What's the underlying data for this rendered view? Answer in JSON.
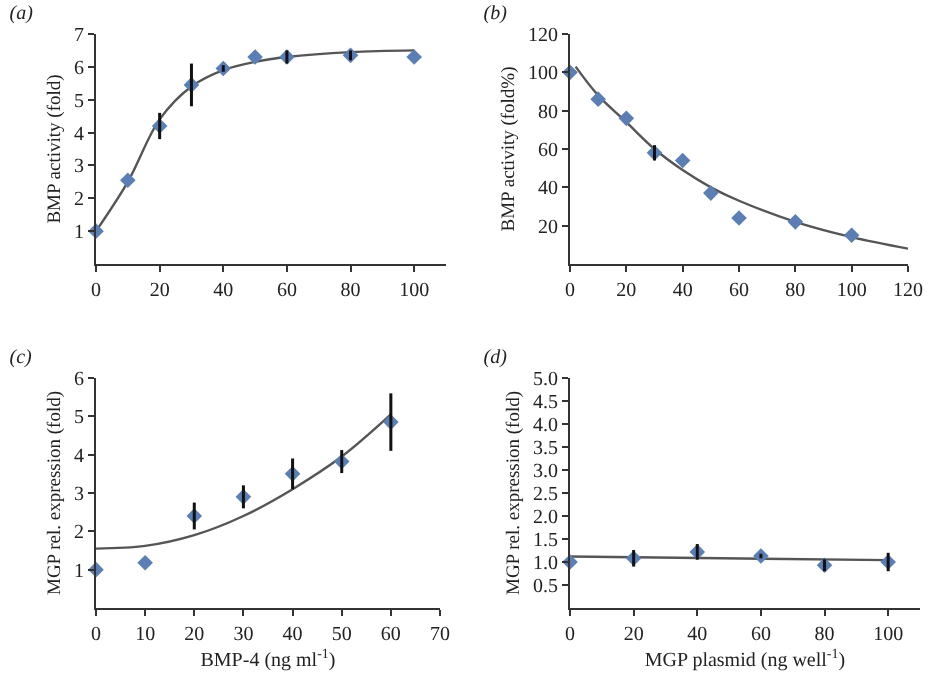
{
  "chart_data": [
    {
      "type": "scatter",
      "title": "(a)",
      "ylabel": "BMP activity (fold)",
      "xlim": [
        0,
        110
      ],
      "xticks": [
        0,
        20,
        40,
        60,
        80,
        100
      ],
      "ylim": [
        0,
        7
      ],
      "yticks": [
        1,
        2,
        3,
        4,
        5,
        6,
        7
      ],
      "series": [
        {
          "type": "scatter",
          "marker": "diamond",
          "color": "#5b7fb5",
          "x": [
            0,
            10,
            20,
            30,
            40,
            50,
            60,
            80,
            100
          ],
          "values": [
            1,
            2.55,
            4.2,
            5.45,
            5.95,
            6.3,
            6.3,
            6.35,
            6.3
          ],
          "errors": [
            null,
            null,
            0.4,
            0.65,
            0.1,
            null,
            0.2,
            0.15,
            null
          ]
        },
        {
          "type": "line",
          "marker": "none",
          "color": "#555555",
          "x": [
            0,
            10,
            20,
            30,
            40,
            50,
            60,
            80,
            100
          ],
          "values": [
            1,
            2.5,
            4.4,
            5.4,
            5.9,
            6.15,
            6.3,
            6.45,
            6.5
          ]
        }
      ]
    },
    {
      "type": "scatter",
      "title": "(b)",
      "ylabel": "BMP activity (fold%)",
      "xlim": [
        0,
        120
      ],
      "xticks": [
        0,
        20,
        40,
        60,
        80,
        100,
        120
      ],
      "ylim": [
        0,
        120
      ],
      "yticks": [
        20,
        40,
        60,
        80,
        100,
        120
      ],
      "series": [
        {
          "type": "scatter",
          "marker": "diamond",
          "color": "#5b7fb5",
          "x": [
            0,
            10,
            20,
            30,
            40,
            50,
            60,
            80,
            100
          ],
          "values": [
            100,
            86,
            76,
            58,
            54,
            37,
            24,
            22,
            15
          ],
          "errors": [
            null,
            null,
            null,
            4,
            null,
            null,
            null,
            null,
            null
          ]
        },
        {
          "type": "line",
          "marker": "none",
          "color": "#555555",
          "x": [
            2,
            10,
            20,
            30,
            40,
            50,
            60,
            80,
            100,
            120
          ],
          "values": [
            103,
            88,
            74,
            60,
            49,
            40,
            33,
            22,
            14,
            8
          ]
        }
      ]
    },
    {
      "type": "scatter",
      "title": "(c)",
      "xlabel": "BMP-4 (ng ml$^{-1}$)",
      "ylabel": "MGP rel. expression (fold)",
      "xlim": [
        0,
        70
      ],
      "xticks": [
        0,
        10,
        20,
        30,
        40,
        50,
        60,
        70
      ],
      "ylim": [
        0,
        6
      ],
      "yticks": [
        1,
        2,
        3,
        4,
        5,
        6
      ],
      "series": [
        {
          "type": "scatter",
          "marker": "diamond",
          "color": "#5b7fb5",
          "x": [
            0,
            10,
            20,
            30,
            40,
            50,
            60
          ],
          "values": [
            1,
            1.18,
            2.4,
            2.9,
            3.5,
            3.82,
            4.85
          ],
          "errors": [
            null,
            null,
            0.35,
            0.3,
            0.4,
            0.3,
            0.75
          ]
        },
        {
          "type": "line",
          "marker": "none",
          "color": "#555555",
          "x": [
            0,
            10,
            20,
            30,
            40,
            50,
            60
          ],
          "values": [
            1.55,
            1.62,
            1.9,
            2.4,
            3.1,
            3.95,
            5.05
          ]
        }
      ]
    },
    {
      "type": "scatter",
      "title": "(d)",
      "xlabel": "MGP plasmid (ng well$^{-1}$)",
      "ylabel": "MGP rel. expression (fold)",
      "xlim": [
        0,
        110
      ],
      "xticks": [
        0,
        20,
        40,
        60,
        80,
        100
      ],
      "ylim": [
        0,
        5
      ],
      "yticks": [
        0.5,
        {
          "value": 1,
          "label": "1.0"
        },
        1.5,
        {
          "value": 2,
          "label": "2.0"
        },
        2.5,
        {
          "value": 3,
          "label": "3.0"
        },
        3.5,
        {
          "value": 4,
          "label": "4.0"
        },
        4.5,
        {
          "value": 5,
          "label": "5.0"
        }
      ],
      "series": [
        {
          "type": "scatter",
          "marker": "diamond",
          "color": "#5b7fb5",
          "x": [
            0,
            20,
            40,
            60,
            80,
            100
          ],
          "values": [
            1.0,
            1.08,
            1.22,
            1.13,
            0.93,
            1.0
          ],
          "errors": [
            null,
            0.18,
            0.17,
            0.05,
            0.13,
            0.2
          ]
        },
        {
          "type": "line",
          "marker": "none",
          "color": "#555555",
          "x": [
            0,
            100
          ],
          "values": [
            1.12,
            1.04
          ]
        }
      ]
    }
  ]
}
